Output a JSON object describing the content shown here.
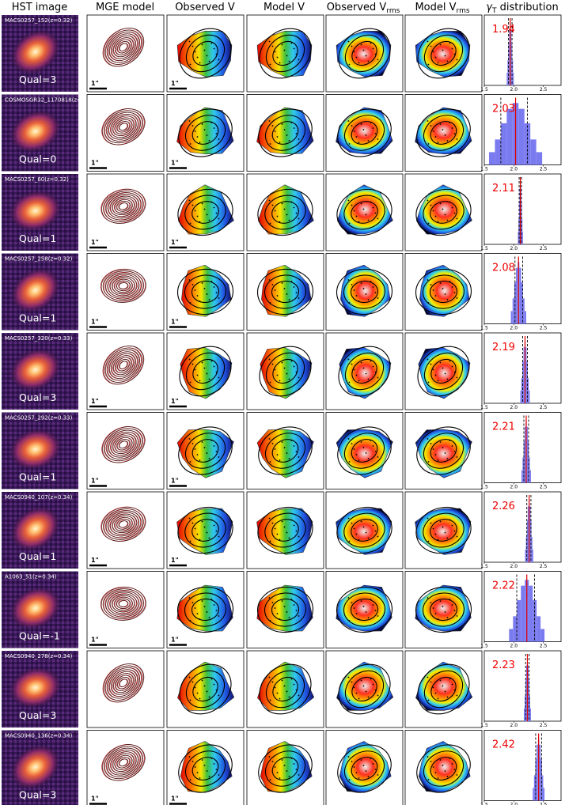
{
  "headers": [
    "HST image",
    "MGE model",
    "Observed V",
    "Model V",
    "Observed V",
    "Model V",
    "distribution"
  ],
  "header_subscripts": {
    "observed_vrms": "rms",
    "model_vrms": "rms",
    "gamma": "T"
  },
  "header_gamma_symbol": "γ",
  "scale_bar_label": "1\"",
  "hist_xticks": [
    "1.5",
    "2.0",
    "2.5"
  ],
  "colors": {
    "contour": "#b22222",
    "hist": "#7b7bf0",
    "median_line": "#e00000",
    "value_text": "#ee0000"
  },
  "rows": [
    {
      "label": "MACS0257_152(z=0.32)",
      "qual": "Qual=3",
      "gamma": "1.94",
      "median": 1.94,
      "lo": 1.91,
      "hi": 1.97,
      "scale_bar_mge": true
    },
    {
      "label": "COSMOSGR32_1170818(z=0.32)",
      "qual": "Qual=0",
      "gamma": "2.03",
      "median": 2.03,
      "lo": 1.78,
      "hi": 2.23,
      "scale_bar_mge": true
    },
    {
      "label": "MACS0257_60(z=0.32)",
      "qual": "Qual=1",
      "gamma": "2.11",
      "median": 2.11,
      "lo": 2.09,
      "hi": 2.13,
      "scale_bar_mge": true
    },
    {
      "label": "MACS0257_258(z=0.32)",
      "qual": "Qual=1",
      "gamma": "2.08",
      "median": 2.08,
      "lo": 2.02,
      "hi": 2.15,
      "scale_bar_mge": true
    },
    {
      "label": "MACS0257_320(z=0.33)",
      "qual": "Qual=3",
      "gamma": "2.19",
      "median": 2.19,
      "lo": 2.15,
      "hi": 2.23,
      "scale_bar_mge": true
    },
    {
      "label": "MACS0257_292(z=0.33)",
      "qual": "Qual=1",
      "gamma": "2.21",
      "median": 2.21,
      "lo": 2.17,
      "hi": 2.25,
      "scale_bar_mge": true
    },
    {
      "label": "MACS0940_107(z=0.34)",
      "qual": "Qual=1",
      "gamma": "2.26",
      "median": 2.26,
      "lo": 2.22,
      "hi": 2.29,
      "scale_bar_mge": true
    },
    {
      "label": "A1063_51(z=0.34)",
      "qual": "Qual=-1",
      "gamma": "2.22",
      "median": 2.22,
      "lo": 2.05,
      "hi": 2.35,
      "scale_bar_mge": true
    },
    {
      "label": "MACS0940_278(z=0.34)",
      "qual": "Qual=3",
      "gamma": "2.23",
      "median": 2.23,
      "lo": 2.2,
      "hi": 2.26,
      "scale_bar_mge": false
    },
    {
      "label": "MACS0940_136(z=0.34)",
      "qual": "Qual=3",
      "gamma": "2.42",
      "median": 2.42,
      "lo": 2.37,
      "hi": 2.47,
      "scale_bar_mge": true
    }
  ]
}
